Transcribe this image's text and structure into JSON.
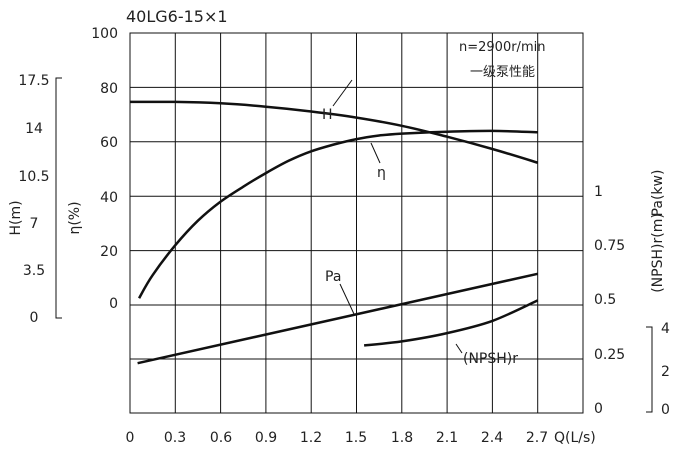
{
  "chart_data": {
    "type": "line",
    "title": "40LG6-15×1",
    "annotation": [
      "n=2900r/min",
      "一级泵性能"
    ],
    "xlabel": "Q(L/s)",
    "x_ticks": [
      "0",
      "0.3",
      "0.6",
      "0.9",
      "1.2",
      "1.5",
      "1.8",
      "2.1",
      "2.4",
      "2.7"
    ],
    "xlim": [
      0,
      3.0
    ],
    "axes": {
      "eta": {
        "label": "η(%)",
        "ticks": [
          "100",
          "80",
          "60",
          "40",
          "20",
          "0"
        ],
        "range": [
          0,
          100
        ]
      },
      "H": {
        "label": "H(m)",
        "ticks": [
          "17.5",
          "14",
          "10.5",
          "7",
          "3.5",
          "0"
        ],
        "range": [
          0,
          17.5
        ]
      },
      "Pa": {
        "label": "Pa(kw)",
        "ticks": [
          "1",
          "0.75",
          "0.5",
          "0.25",
          "0"
        ],
        "range": [
          0,
          1
        ]
      },
      "NPSH": {
        "label": "(NPSH)r(m)",
        "ticks": [
          "4",
          "2",
          "0"
        ],
        "range": [
          0,
          4
        ]
      }
    },
    "series": [
      {
        "name": "H",
        "axis": "H",
        "x": [
          0,
          0.3,
          0.6,
          0.9,
          1.2,
          1.5,
          1.8,
          2.1,
          2.4,
          2.7
        ],
        "y": [
          15.75,
          15.75,
          15.65,
          15.4,
          15.05,
          14.6,
          14.0,
          13.2,
          12.3,
          11.3
        ]
      },
      {
        "name": "η",
        "axis": "eta",
        "x": [
          0.06,
          0.15,
          0.3,
          0.45,
          0.6,
          0.75,
          0.9,
          1.05,
          1.2,
          1.35,
          1.5,
          1.65,
          1.8,
          2.1,
          2.4,
          2.7
        ],
        "y": [
          2.5,
          11,
          22,
          31,
          38,
          43.5,
          48.5,
          53,
          56.5,
          59,
          61,
          62.3,
          63,
          63.7,
          64,
          63.5
        ]
      },
      {
        "name": "Pa",
        "axis": "Pa",
        "x": [
          0.05,
          2.7
        ],
        "y": [
          0.21,
          0.62
        ]
      },
      {
        "name": "(NPSH)r",
        "axis": "NPSH",
        "x": [
          1.55,
          1.8,
          2.1,
          2.4,
          2.7
        ],
        "y": [
          3.1,
          3.3,
          3.7,
          4.3,
          5.3
        ]
      }
    ],
    "labels": {
      "H": "H",
      "eta": "η",
      "Pa": "Pa",
      "NPSH": "(NPSH)r"
    },
    "grid": true
  }
}
